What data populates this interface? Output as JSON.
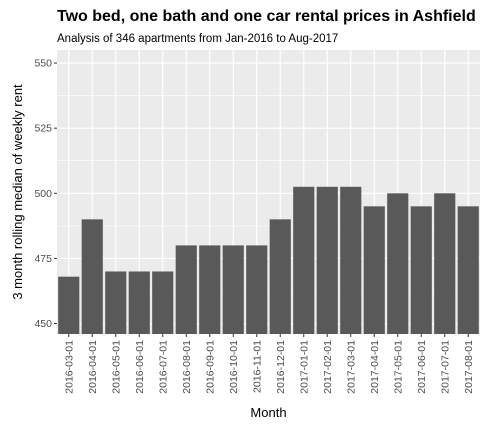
{
  "chart_data": {
    "type": "bar",
    "title": "Two bed, one bath and one car rental prices in Ashfield",
    "subtitle": "Analysis of 346 apartments from Jan-2016 to Aug-2017",
    "xlabel": "Month",
    "ylabel": "3 month rolling median of weekly rent",
    "categories": [
      "2016-03-01",
      "2016-04-01",
      "2016-05-01",
      "2016-06-01",
      "2016-07-01",
      "2016-08-01",
      "2016-09-01",
      "2016-10-01",
      "2016-11-01",
      "2016-12-01",
      "2017-01-01",
      "2017-02-01",
      "2017-03-01",
      "2017-04-01",
      "2017-05-01",
      "2017-06-01",
      "2017-07-01",
      "2017-08-01"
    ],
    "values": [
      468,
      490,
      470,
      470,
      470,
      480,
      480,
      480,
      480,
      490,
      502.5,
      502.5,
      502.5,
      495,
      500,
      495,
      500,
      495
    ],
    "ylim": [
      446,
      555
    ],
    "yticks": [
      450,
      475,
      500,
      525,
      550
    ],
    "grid": true,
    "legend": "none",
    "colors": {
      "bar": "#595959",
      "panel": "#ebebeb",
      "grid": "#ffffff"
    }
  }
}
